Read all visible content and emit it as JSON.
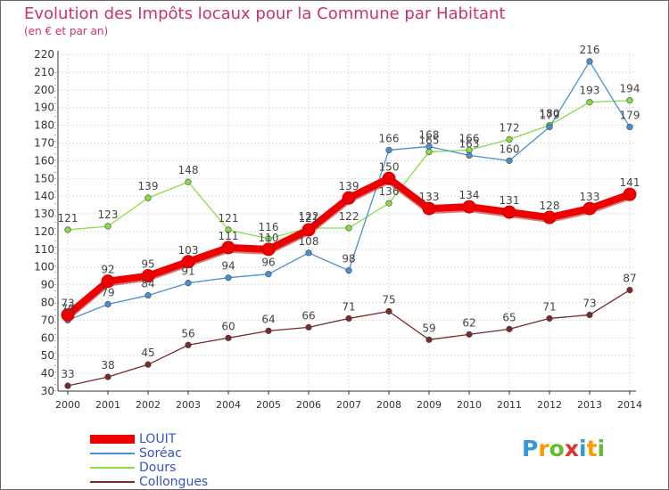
{
  "chart_data": {
    "type": "line",
    "title": "Evolution des Impôts locaux pour la Commune par Habitant",
    "subtitle": "(en € et par an)",
    "xlabel": "",
    "ylabel": "",
    "categories": [
      "2000",
      "2001",
      "2002",
      "2003",
      "2004",
      "2005",
      "2006",
      "2007",
      "2008",
      "2009",
      "2010",
      "2011",
      "2012",
      "2013",
      "2014"
    ],
    "ylim": [
      30,
      220
    ],
    "yticks": [
      30,
      40,
      50,
      60,
      70,
      80,
      90,
      100,
      110,
      120,
      130,
      140,
      150,
      160,
      170,
      180,
      190,
      200,
      210,
      220
    ],
    "grid": true,
    "series": [
      {
        "name": "LOUIT",
        "color": "#ee0000",
        "values": [
          73,
          92,
          95,
          103,
          111,
          110,
          121,
          139,
          150,
          133,
          134,
          131,
          128,
          133,
          141
        ]
      },
      {
        "name": "Soréac",
        "color": "#4a90d0",
        "values": [
          70,
          79,
          84,
          91,
          94,
          96,
          108,
          98,
          166,
          168,
          163,
          160,
          179,
          216,
          179
        ]
      },
      {
        "name": "Dours",
        "color": "#88dd44",
        "values": [
          121,
          123,
          139,
          148,
          121,
          116,
          122,
          122,
          136,
          165,
          166,
          172,
          180,
          193,
          194
        ]
      },
      {
        "name": "Collongues",
        "color": "#7a2a2a",
        "values": [
          33,
          38,
          45,
          56,
          60,
          64,
          66,
          71,
          75,
          59,
          62,
          65,
          71,
          73,
          87
        ]
      }
    ]
  },
  "logo": {
    "letters": [
      "P",
      "r",
      "o",
      "x",
      "i",
      "t",
      "i"
    ],
    "colors": [
      "#3399dd",
      "#ff9900",
      "#66bb33",
      "#dd3333",
      "#3399dd",
      "#ff9900",
      "#66bb33"
    ]
  }
}
